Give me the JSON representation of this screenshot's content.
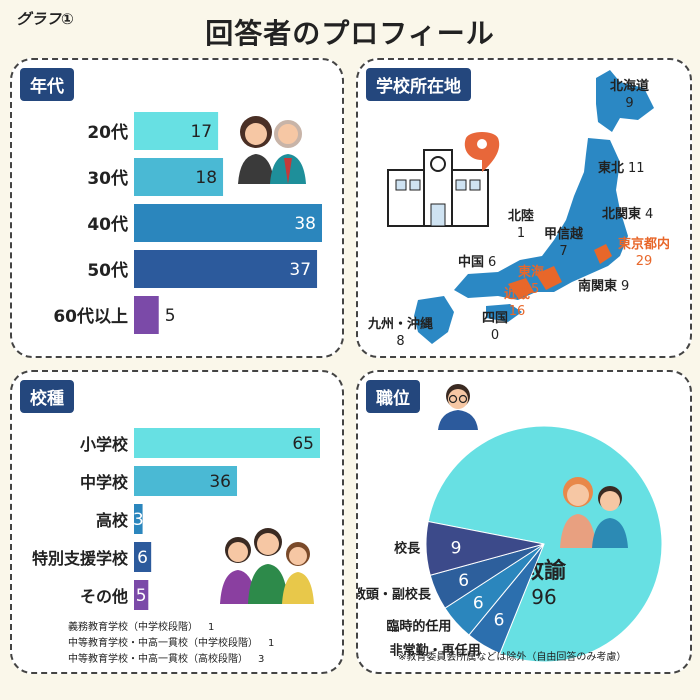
{
  "header": {
    "graph_label": "グラフ①",
    "title": "回答者のプロフィール"
  },
  "age": {
    "tag": "年代",
    "chart_data": {
      "type": "bar",
      "categories": [
        "20代",
        "30代",
        "40代",
        "50代",
        "60代以上"
      ],
      "values": [
        17,
        18,
        38,
        37,
        5
      ],
      "xlim": [
        0,
        38
      ],
      "colors": [
        "#67e0e3",
        "#4ab9d4",
        "#2b86bd",
        "#2c5a9c",
        "#7b4aa8"
      ]
    }
  },
  "location": {
    "tag": "学校所在地",
    "chart_data": {
      "type": "table",
      "regions": [
        {
          "name": "北海道",
          "value": 9,
          "highlight": false
        },
        {
          "name": "東北",
          "value": 11,
          "highlight": false
        },
        {
          "name": "北関東",
          "value": 4,
          "highlight": false
        },
        {
          "name": "北陸",
          "value": 1,
          "highlight": false
        },
        {
          "name": "甲信越",
          "value": 7,
          "highlight": false
        },
        {
          "name": "東京都内",
          "value": 29,
          "highlight": true
        },
        {
          "name": "中国",
          "value": 6,
          "highlight": false
        },
        {
          "name": "東海",
          "value": 15,
          "highlight": true
        },
        {
          "name": "近畿",
          "value": 16,
          "highlight": true
        },
        {
          "name": "南関東",
          "value": 9,
          "highlight": false
        },
        {
          "name": "四国",
          "value": 0,
          "highlight": false
        },
        {
          "name": "九州・沖縄",
          "value": 8,
          "highlight": false
        }
      ]
    },
    "colors": {
      "land": "#2b88c4",
      "highlight": "#e8672a",
      "pin": "#e8673a"
    }
  },
  "school_type": {
    "tag": "校種",
    "chart_data": {
      "type": "bar",
      "categories": [
        "小学校",
        "中学校",
        "高校",
        "特別支援学校",
        "その他"
      ],
      "values": [
        65,
        36,
        3,
        6,
        5
      ],
      "xlim": [
        0,
        65
      ],
      "colors": [
        "#67e0e3",
        "#4ab9d4",
        "#2b86bd",
        "#2c5a9c",
        "#7b4aa8"
      ]
    },
    "footnotes": [
      {
        "text": "義務教育学校（中学校段階）",
        "value": "1"
      },
      {
        "text": "中等教育学校・中高一貫校（中学校段階）",
        "value": "1"
      },
      {
        "text": "中等教育学校・中高一貫校（高校段階）",
        "value": "3"
      }
    ]
  },
  "position": {
    "tag": "職位",
    "chart_data": {
      "type": "pie",
      "slices": [
        {
          "label": "教諭",
          "value": 96,
          "color": "#67e0e3"
        },
        {
          "label": "非常勤・再任用",
          "value": 6,
          "color": "#2c6fae"
        },
        {
          "label": "臨時的任用",
          "value": 6,
          "color": "#2b86bd"
        },
        {
          "label": "教頭・副校長",
          "value": 6,
          "color": "#2d5f9c"
        },
        {
          "label": "校長",
          "value": 9,
          "color": "#3c4a8a"
        }
      ]
    },
    "note": "※教育委員会所属などは除外（自由回答のみ考慮）"
  }
}
